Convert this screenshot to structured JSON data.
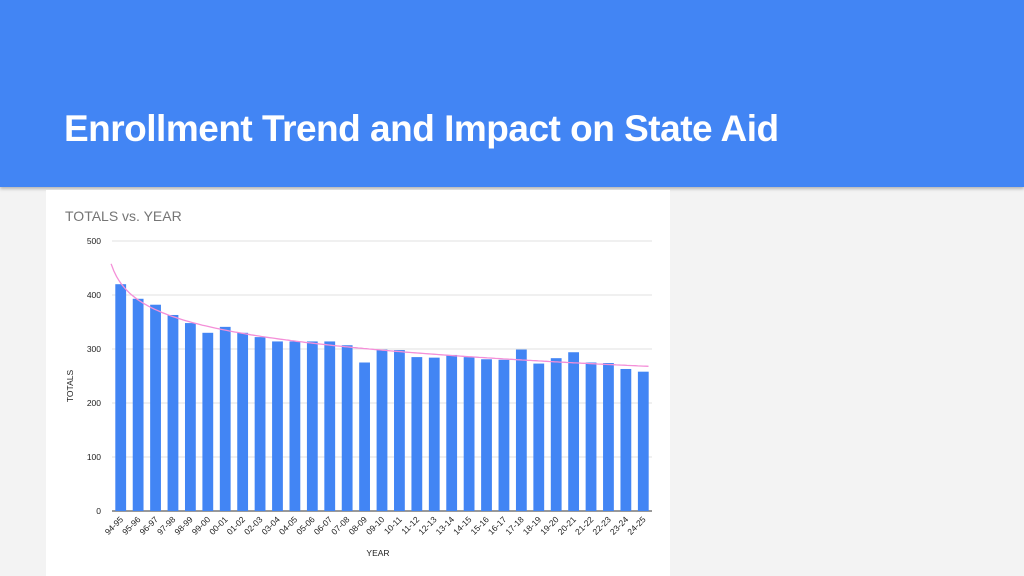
{
  "slide": {
    "title": "Enrollment Trend and Impact on State Aid"
  },
  "colors": {
    "header_bg": "#4285f4",
    "bar": "#4285f4",
    "trendline": "#f48fd8",
    "grid": "#e0e0e0"
  },
  "chart_data": {
    "type": "bar",
    "title": "TOTALS vs. YEAR",
    "xlabel": "YEAR",
    "ylabel": "TOTALS",
    "ylim": [
      0,
      500
    ],
    "yticks": [
      0,
      100,
      200,
      300,
      400,
      500
    ],
    "grid": true,
    "legend": "none",
    "trendline": "logarithmic",
    "categories": [
      "94-95",
      "95-96",
      "96-97",
      "97-98",
      "98-99",
      "99-00",
      "00-01",
      "01-02",
      "02-03",
      "03-04",
      "04-05",
      "05-06",
      "06-07",
      "07-08",
      "08-09",
      "09-10",
      "10-11",
      "11-12",
      "12-13",
      "13-14",
      "14-15",
      "15-16",
      "16-17",
      "17-18",
      "18-19",
      "19-20",
      "20-21",
      "21-22",
      "22-23",
      "23-24",
      "24-25"
    ],
    "series": [
      {
        "name": "TOTALS",
        "values": [
          420,
          393,
          382,
          363,
          348,
          330,
          341,
          330,
          322,
          314,
          314,
          314,
          314,
          307,
          275,
          299,
          298,
          285,
          284,
          289,
          285,
          281,
          280,
          299,
          273,
          283,
          294,
          275,
          274,
          263,
          258
        ]
      }
    ]
  }
}
